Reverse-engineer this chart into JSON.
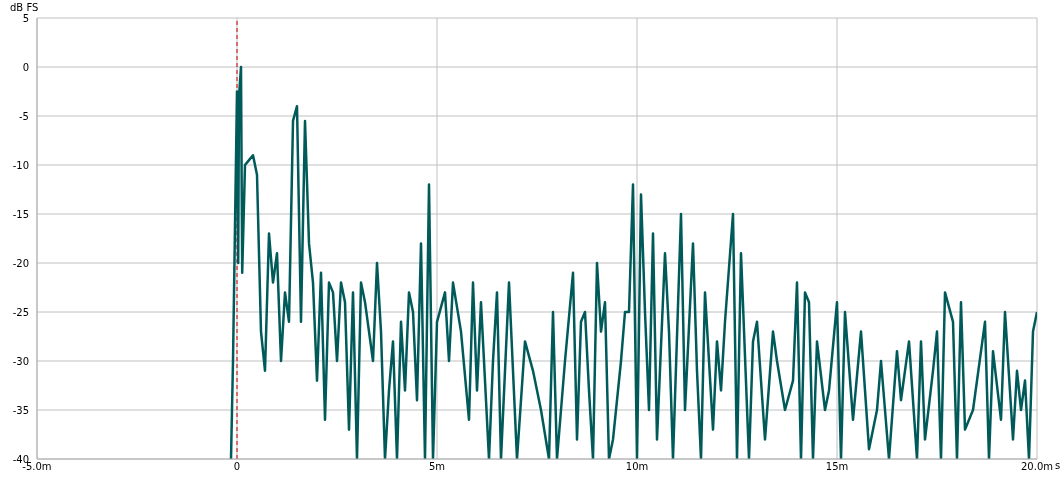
{
  "chart_data": {
    "type": "line",
    "ylabel": "dB FS",
    "xlabel": "s",
    "xlim": [
      -5,
      20
    ],
    "xticks": [
      {
        "value": -5,
        "label": "-5.0m"
      },
      0,
      {
        "value": 5,
        "label": "5m"
      },
      {
        "value": 10,
        "label": "10m"
      },
      {
        "value": 15,
        "label": "15m"
      },
      {
        "value": 20,
        "label": "20.0m"
      }
    ],
    "ylim": [
      -40,
      5
    ],
    "yticks": [
      5,
      0,
      -5,
      -10,
      -15,
      -20,
      -25,
      -30,
      -35,
      -40
    ],
    "grid": true,
    "legend": false,
    "marker": "none",
    "line_style": "solid",
    "ref_lines": [
      {
        "axis": "x",
        "value": 0,
        "color": "#cc0000",
        "line_style": "dashed"
      }
    ],
    "x": [
      -0.15,
      -0.1,
      0,
      0.03,
      0.05,
      0.1,
      0.13,
      0.2,
      0.3,
      0.4,
      0.5,
      0.6,
      0.7,
      0.8,
      0.9,
      1,
      1.1,
      1.2,
      1.3,
      1.4,
      1.5,
      1.6,
      1.7,
      1.8,
      1.9,
      2,
      2.1,
      2.2,
      2.3,
      2.4,
      2.5,
      2.6,
      2.7,
      2.8,
      2.9,
      3,
      3.1,
      3.2,
      3.4,
      3.5,
      3.6,
      3.7,
      3.8,
      3.9,
      4,
      4.1,
      4.2,
      4.3,
      4.4,
      4.5,
      4.6,
      4.7,
      4.8,
      4.9,
      5,
      5.2,
      5.3,
      5.4,
      5.6,
      5.8,
      5.9,
      6,
      6.1,
      6.3,
      6.4,
      6.5,
      6.6,
      6.8,
      7,
      7.2,
      7.4,
      7.6,
      7.8,
      7.9,
      8,
      8.2,
      8.4,
      8.5,
      8.6,
      8.7,
      8.8,
      8.9,
      9,
      9.1,
      9.2,
      9.3,
      9.4,
      9.6,
      9.7,
      9.8,
      9.9,
      10,
      10.1,
      10.2,
      10.3,
      10.4,
      10.5,
      10.7,
      10.8,
      10.9,
      11.1,
      11.2,
      11.4,
      11.5,
      11.6,
      11.7,
      11.9,
      12,
      12.1,
      12.2,
      12.4,
      12.5,
      12.6,
      12.8,
      12.9,
      13,
      13.2,
      13.4,
      13.5,
      13.7,
      13.9,
      14,
      14.1,
      14.2,
      14.3,
      14.4,
      14.5,
      14.7,
      14.8,
      15,
      15.1,
      15.2,
      15.4,
      15.6,
      15.8,
      16,
      16.1,
      16.3,
      16.5,
      16.6,
      16.8,
      17,
      17.1,
      17.2,
      17.4,
      17.5,
      17.6,
      17.7,
      17.9,
      18,
      18.1,
      18.2,
      18.4,
      18.5,
      18.7,
      18.8,
      18.9,
      19.1,
      19.2,
      19.4,
      19.5,
      19.6,
      19.7,
      19.8,
      19.9,
      20
    ],
    "series": [
      {
        "color": "#005a5a",
        "values": [
          -40,
          -30,
          -2.5,
          -20,
          -3,
          0,
          -21,
          -10,
          -9.5,
          -9,
          -11,
          -27,
          -31,
          -17,
          -22,
          -19,
          -30,
          -23,
          -26,
          -5.5,
          -4,
          -26,
          -5.5,
          -18,
          -22,
          -32,
          -21,
          -36,
          -22,
          -23,
          -30,
          -22,
          -24,
          -37,
          -23,
          -40,
          -22,
          -24,
          -30,
          -20,
          -27,
          -40,
          -33,
          -28,
          -40,
          -26,
          -33,
          -23,
          -25,
          -34,
          -18,
          -40,
          -12,
          -40,
          -26,
          -23,
          -30,
          -22,
          -27,
          -36,
          -22,
          -33,
          -24,
          -40,
          -30,
          -23,
          -40,
          -22,
          -40,
          -28,
          -31,
          -35,
          -40,
          -25,
          -40,
          -30,
          -21,
          -38,
          -26,
          -25,
          -33,
          -40,
          -20,
          -27,
          -24,
          -40,
          -38,
          -30,
          -25,
          -25,
          -12,
          -40,
          -13,
          -25,
          -35,
          -17,
          -38,
          -19,
          -27,
          -40,
          -15,
          -35,
          -18,
          -31,
          -40,
          -23,
          -37,
          -28,
          -33,
          -26,
          -15,
          -40,
          -19,
          -40,
          -28,
          -26,
          -38,
          -27,
          -30,
          -35,
          -32,
          -22,
          -40,
          -23,
          -24,
          -40,
          -28,
          -35,
          -33,
          -24,
          -40,
          -25,
          -36,
          -27,
          -39,
          -35,
          -30,
          -40,
          -29,
          -34,
          -28,
          -40,
          -28,
          -38,
          -31,
          -27,
          -40,
          -23,
          -26,
          -40,
          -24,
          -37,
          -35,
          -32,
          -26,
          -40,
          -29,
          -36,
          -25,
          -38,
          -31,
          -35,
          -32,
          -40,
          -27,
          -25
        ]
      }
    ]
  }
}
